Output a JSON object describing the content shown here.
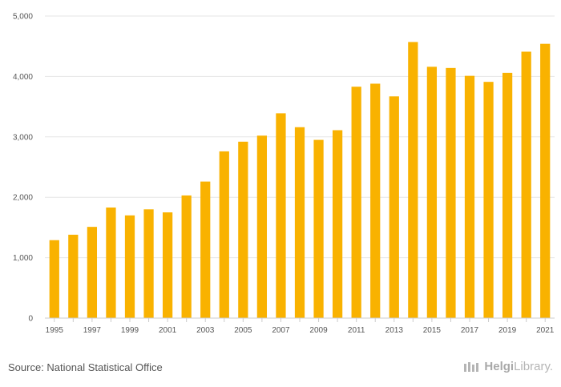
{
  "chart_data": {
    "type": "bar",
    "title": "",
    "xlabel": "",
    "ylabel": "",
    "ylim": [
      0,
      5000
    ],
    "yticks": [
      0,
      1000,
      2000,
      3000,
      4000,
      5000
    ],
    "ytick_labels": [
      "0",
      "1,000",
      "2,000",
      "3,000",
      "4,000",
      "5,000"
    ],
    "categories": [
      "1995",
      "1996",
      "1997",
      "1998",
      "1999",
      "2000",
      "2001",
      "2002",
      "2003",
      "2004",
      "2005",
      "2006",
      "2007",
      "2008",
      "2009",
      "2010",
      "2011",
      "2012",
      "2013",
      "2014",
      "2015",
      "2016",
      "2017",
      "2018",
      "2019",
      "2020",
      "2021"
    ],
    "xtick_labels": [
      "1995",
      "1997",
      "1999",
      "2001",
      "2003",
      "2005",
      "2007",
      "2009",
      "2011",
      "2013",
      "2015",
      "2017",
      "2019",
      "2021"
    ],
    "values": [
      1290,
      1380,
      1510,
      1830,
      1700,
      1800,
      1750,
      2030,
      2260,
      2760,
      2920,
      3020,
      3390,
      3160,
      2950,
      3110,
      3830,
      3880,
      3670,
      4570,
      4160,
      4140,
      4010,
      3910,
      4060,
      4410,
      4540
    ],
    "bar_color": "#f9b200",
    "grid": true
  },
  "footer": {
    "source": "Source: National Statistical Office",
    "logo_bold": "Helgi",
    "logo_rest": "Library."
  }
}
